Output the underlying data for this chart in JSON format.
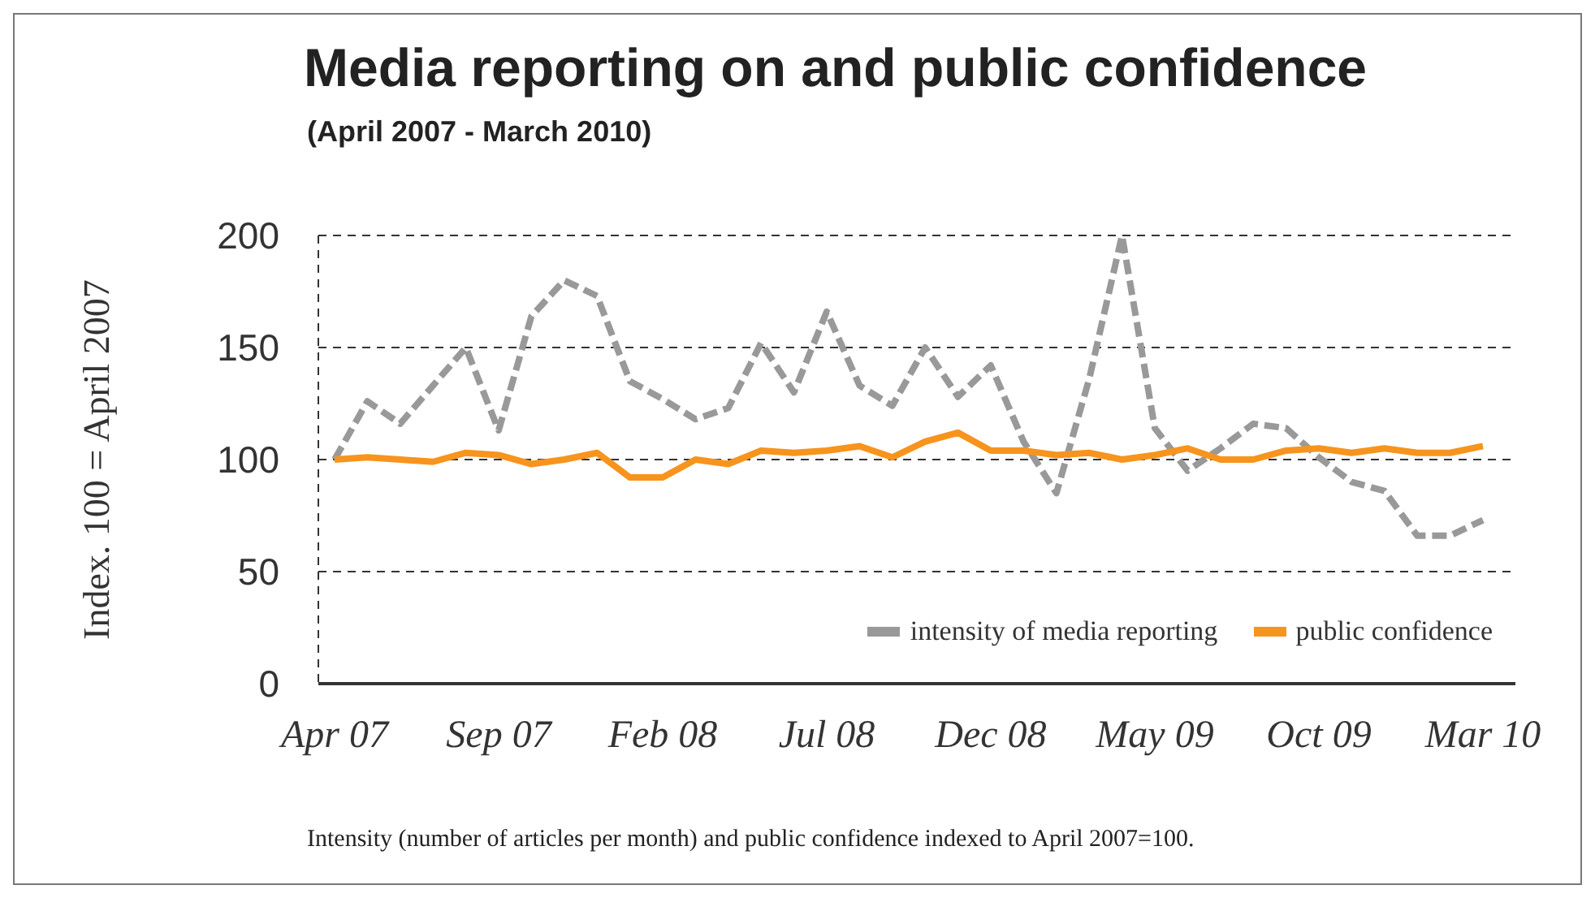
{
  "chart_data": {
    "type": "line",
    "title": "Media reporting on and public confidence",
    "subtitle": "(April 2007 - March 2010)",
    "ylabel": "Index. 100 = April 2007",
    "categories": [
      "Apr 07",
      null,
      null,
      null,
      null,
      "Sep 07",
      null,
      null,
      null,
      null,
      "Feb 08",
      null,
      null,
      null,
      null,
      "Jul 08",
      null,
      null,
      null,
      null,
      "Dec 08",
      null,
      null,
      null,
      null,
      "May 09",
      null,
      null,
      null,
      null,
      "Oct 09",
      null,
      null,
      null,
      null,
      "Mar 10"
    ],
    "series": [
      {
        "name": "intensity of media reporting",
        "color": "#999999",
        "line_style": "dashed",
        "values": [
          100,
          126,
          116,
          133,
          150,
          113,
          164,
          180,
          173,
          135,
          127,
          118,
          123,
          152,
          130,
          166,
          133,
          124,
          150,
          128,
          142,
          108,
          85,
          136,
          200,
          114,
          95,
          105,
          116,
          114,
          101,
          90,
          86,
          66,
          66,
          73
        ]
      },
      {
        "name": "public confidence",
        "color": "#f7941d",
        "line_style": "solid",
        "values": [
          100,
          101,
          100,
          99,
          103,
          102,
          98,
          100,
          103,
          92,
          92,
          100,
          98,
          104,
          103,
          104,
          106,
          101,
          108,
          112,
          104,
          104,
          102,
          103,
          100,
          102,
          105,
          100,
          100,
          104,
          105,
          103,
          105,
          103,
          103,
          106
        ]
      }
    ],
    "ylim": [
      0,
      200
    ],
    "yticks": [
      0,
      50,
      100,
      150,
      200
    ],
    "grid": "y",
    "legend": "bottom right",
    "marker": "none",
    "annotations": [
      "Intensity (number of articles per month) and public confidence indexed to April 2007=100."
    ]
  }
}
